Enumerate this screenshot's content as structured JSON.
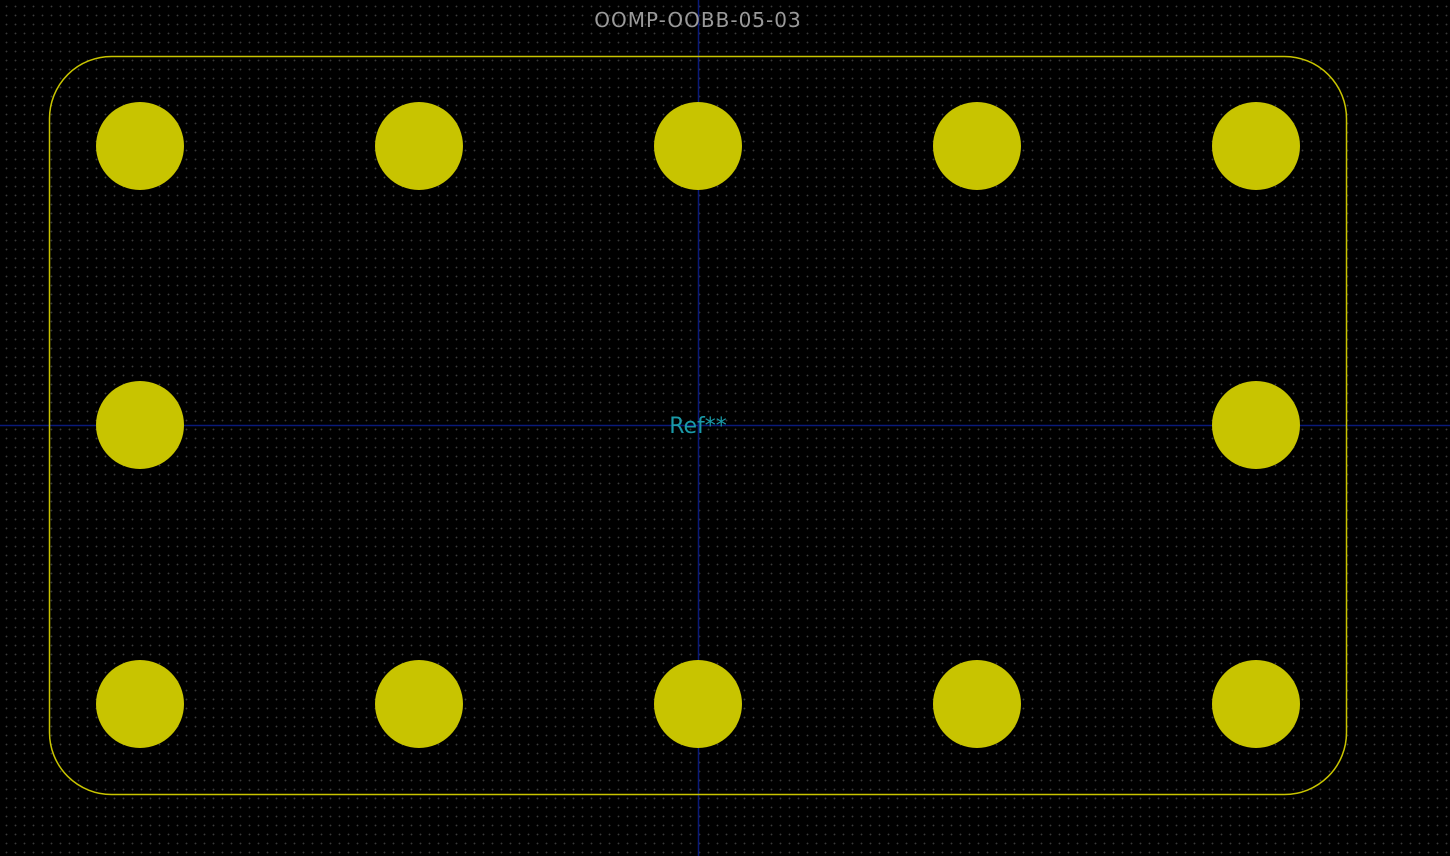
{
  "footprint": {
    "value_text": "OOMP-OOBB-05-03",
    "reference_text": "Ref**"
  },
  "pads": [
    {
      "row": "top",
      "column": 1
    },
    {
      "row": "top",
      "column": 2
    },
    {
      "row": "top",
      "column": 3
    },
    {
      "row": "top",
      "column": 4
    },
    {
      "row": "top",
      "column": 5
    },
    {
      "row": "middle",
      "column": 1
    },
    {
      "row": "middle",
      "column": 5
    },
    {
      "row": "bottom",
      "column": 1
    },
    {
      "row": "bottom",
      "column": 2
    },
    {
      "row": "bottom",
      "column": 3
    },
    {
      "row": "bottom",
      "column": 4
    },
    {
      "row": "bottom",
      "column": 5
    }
  ],
  "colors": {
    "background": "#000000",
    "grid_dots": "#3a3a3a",
    "pad_fill": "#c8c400",
    "outline": "#c8c400",
    "axis": "#0a1a7a",
    "value_text": "#9a9a9a",
    "reference_text": "#1a9aa8"
  }
}
